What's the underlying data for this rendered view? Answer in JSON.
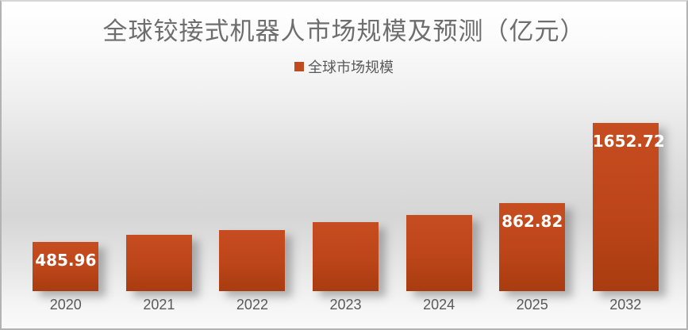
{
  "chart_data": {
    "type": "bar",
    "title": "全球铰接式机器人市场规模及预测（亿元）",
    "legend": {
      "label": "全球市场规模",
      "position": "top",
      "swatch_color": "#c14a1e"
    },
    "categories": [
      "2020",
      "2021",
      "2022",
      "2023",
      "2024",
      "2025",
      "2032"
    ],
    "series": [
      {
        "name": "全球市场规模",
        "values": [
          485.96,
          551,
          601,
          675,
          748,
          862.82,
          1652.72
        ],
        "data_labels": [
          "485.96",
          "",
          "",
          "",
          "",
          "862.82",
          "1652.72"
        ]
      }
    ],
    "unlabeled_values_estimated_from_bar_heights": [
      551,
      601,
      675,
      748
    ],
    "xlabel": "",
    "ylabel": "",
    "ylim": [
      0,
      1700
    ],
    "grid": false,
    "axis_lines": false,
    "colors": {
      "bar_top": "#c64d20",
      "bar_mid": "#bc4519",
      "bar_bottom": "#a83c10",
      "bar_value_label": "#ffffff",
      "axis_text": "#595959",
      "title_text": "#6e6e6e"
    }
  }
}
